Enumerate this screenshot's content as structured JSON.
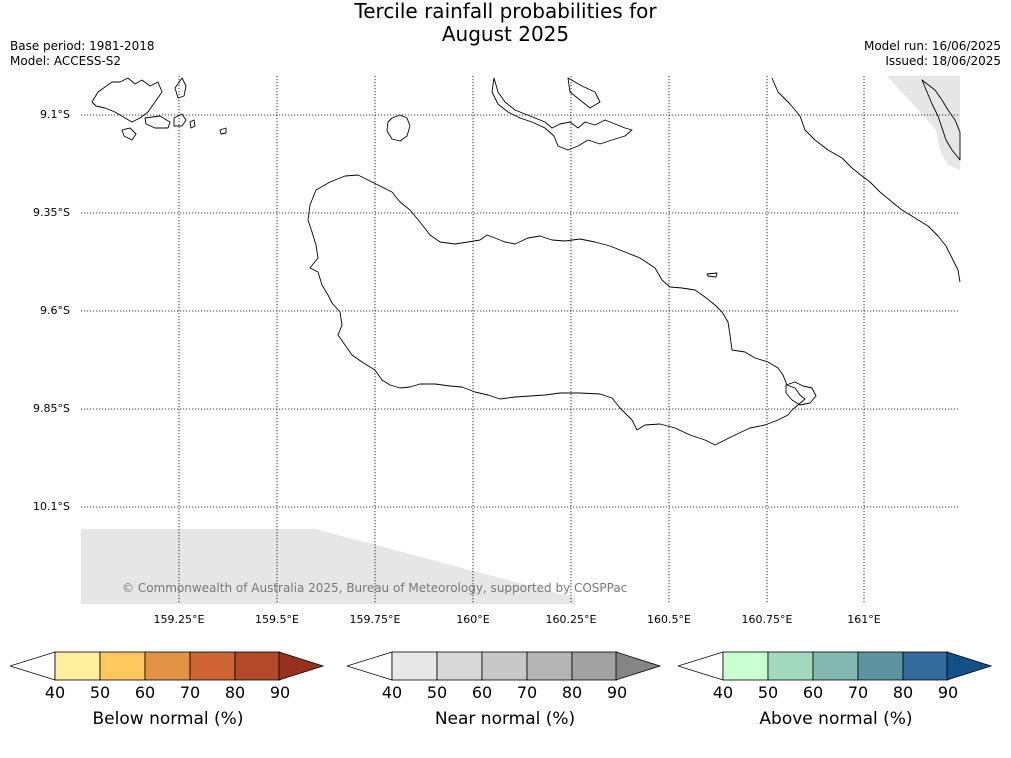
{
  "header": {
    "title_line1": "Tercile rainfall probabilities for",
    "title_line2": "August 2025",
    "base_period": "Base period: 1981-2018",
    "model": "Model: ACCESS-S2",
    "model_run": "Model run: 16/06/2025",
    "issued": "Issued: 18/06/2025"
  },
  "map": {
    "lat_labels": [
      "9.1°S",
      "9.35°S",
      "9.6°S",
      "9.85°S",
      "10.1°S"
    ],
    "lon_labels": [
      "159.25°E",
      "159.5°E",
      "159.75°E",
      "160°E",
      "160.25°E",
      "160.5°E",
      "160.75°E",
      "161°E"
    ],
    "credit": "© Commonwealth of Australia 2025, Bureau of Meteorology, supported by COSPPac",
    "no_data_color": "#e6e6e6",
    "coast_color": "#000000",
    "grid_style": "dotted"
  },
  "colorbars": [
    {
      "title": "Below normal (%)",
      "ticks": [
        "40",
        "50",
        "60",
        "70",
        "80",
        "90"
      ],
      "colors": [
        "#fff09f",
        "#fec85f",
        "#e09345",
        "#cf6434",
        "#b1492a",
        "#98321e"
      ]
    },
    {
      "title": "Near normal (%)",
      "ticks": [
        "40",
        "50",
        "60",
        "70",
        "80",
        "90"
      ],
      "colors": [
        "#e8e8e8",
        "#d8d8d8",
        "#c8c8c8",
        "#b4b4b4",
        "#a2a2a2",
        "#858585"
      ]
    },
    {
      "title": "Above normal (%)",
      "ticks": [
        "40",
        "50",
        "60",
        "70",
        "80",
        "90"
      ],
      "colors": [
        "#c9ffd1",
        "#a2dabf",
        "#83b8b3",
        "#5d93a0",
        "#356b9a",
        "#134f88"
      ]
    }
  ]
}
